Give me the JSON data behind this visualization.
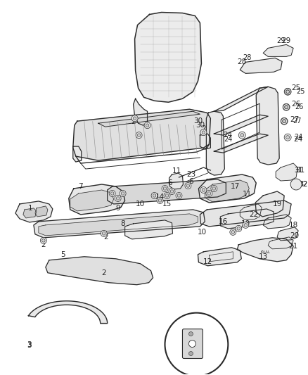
{
  "bg_color": "#ffffff",
  "line_color": "#2a2a2a",
  "fill_light": "#f5f5f5",
  "fill_mid": "#e8e8e8",
  "fill_dark": "#d0d0d0",
  "label_color": "#222222",
  "fig_width": 4.38,
  "fig_height": 5.33,
  "dpi": 100
}
